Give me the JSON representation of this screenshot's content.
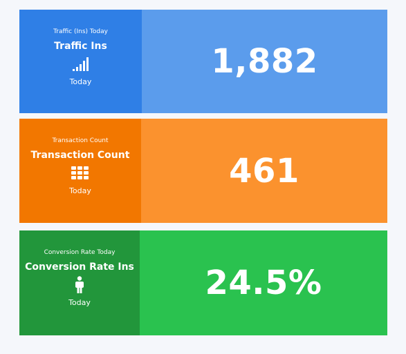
{
  "cards": [
    {
      "small_title": "Traffic (Ins) Today",
      "title": "Traffic Ins",
      "icon": "signal-bars-icon",
      "period": "Today",
      "value": "1,882",
      "colors": {
        "left": "#2f7fe6",
        "right": "#5b9cec"
      }
    },
    {
      "small_title": "Transaction Count",
      "title": "Transaction Count",
      "icon": "grid-icon",
      "period": "Today",
      "value": "461",
      "colors": {
        "left": "#f27700",
        "right": "#fb922e"
      }
    },
    {
      "small_title": "Conversion Rate Today",
      "title": "Conversion Rate Ins",
      "icon": "person-icon",
      "period": "Today",
      "value": "24.5%",
      "colors": {
        "left": "#22963b",
        "right": "#2ac24f"
      }
    }
  ]
}
